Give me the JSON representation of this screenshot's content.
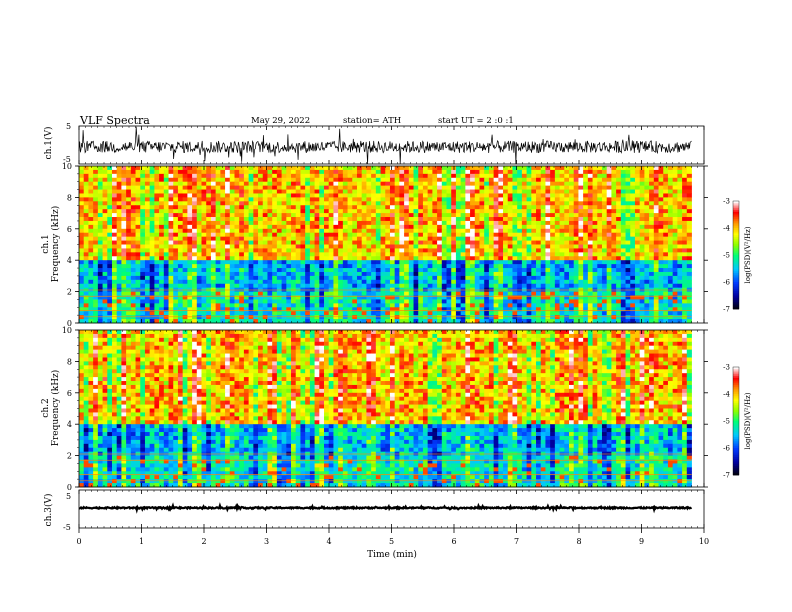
{
  "header": {
    "title": "VLF  Spectra",
    "date": "May 29, 2022",
    "station": "station= ATH",
    "start": "start  UT  =   2  :0  :1"
  },
  "colors": {
    "waveform": "#000000",
    "colorbar": [
      "#000000",
      "#0000ff",
      "#00aaff",
      "#00ff80",
      "#a0ff00",
      "#ffff00",
      "#ffa000",
      "#ff0000",
      "#ffffff"
    ]
  },
  "chart_data": [
    {
      "name": "ch1-waveform",
      "type": "line",
      "ylabel": "ch.1(V)",
      "ylim": [
        -5,
        5
      ],
      "yticks": [
        "5",
        "-5"
      ],
      "xlim": [
        0,
        10
      ],
      "x_data_end": 9.8,
      "baseline": -0.5,
      "amplitude_note": "noisy trace, mostly within ±2 V"
    },
    {
      "name": "ch1-spectrogram",
      "type": "heatmap",
      "ylabel": "ch.1\nFrequency  (kHz)",
      "ylabel_lines": [
        "ch.1",
        "Frequency  (kHz)"
      ],
      "ylim": [
        0,
        10
      ],
      "yticks": [
        "0",
        "2",
        "4",
        "6",
        "8",
        "10"
      ],
      "xlim": [
        0,
        10
      ],
      "x_data_end": 9.8,
      "colorbar": {
        "label": "log(PSD)(V²/Hz)",
        "range": [
          -7,
          -3
        ],
        "ticks": [
          "-3",
          "-4",
          "-5",
          "-6",
          "-7"
        ]
      },
      "description_of_levels": {
        "high_freq_4_to_10_kHz": [
          -4.5,
          -3.5
        ],
        "mid_freq_2_to_4_kHz": [
          -6,
          -5
        ],
        "low_freq_0_to_2_kHz": [
          -6,
          -4.5
        ]
      }
    },
    {
      "name": "ch2-spectrogram",
      "type": "heatmap",
      "ylabel": "ch.2\nFrequency  (kHz)",
      "ylabel_lines": [
        "ch.2",
        "Frequency  (kHz)"
      ],
      "ylim": [
        0,
        10
      ],
      "yticks": [
        "0",
        "2",
        "4",
        "6",
        "8",
        "10"
      ],
      "xlim": [
        0,
        10
      ],
      "x_data_end": 9.8,
      "colorbar": {
        "label": "log(PSD)(V²/Hz)",
        "range": [
          -7,
          -3
        ],
        "ticks": [
          "-3",
          "-4",
          "-5",
          "-6",
          "-7"
        ]
      },
      "description_of_levels": {
        "high_freq_4_to_10_kHz": [
          -4.5,
          -3.5
        ],
        "mid_freq_2_to_4_kHz": [
          -6,
          -5
        ],
        "low_freq_0_to_2_kHz": [
          -6,
          -4.5
        ]
      }
    },
    {
      "name": "ch3-waveform",
      "type": "line",
      "ylabel": "ch.3(V)",
      "ylim": [
        -5,
        5
      ],
      "yticks": [
        "5",
        "-5"
      ],
      "xlim": [
        0,
        10
      ],
      "x_data_end": 9.8,
      "baseline": 0.3,
      "amplitude_note": "nearly flat thick trace"
    }
  ],
  "xaxis": {
    "label": "Time  (min)",
    "ticks": [
      "0",
      "1",
      "2",
      "3",
      "4",
      "5",
      "6",
      "7",
      "8",
      "9",
      "10"
    ]
  }
}
